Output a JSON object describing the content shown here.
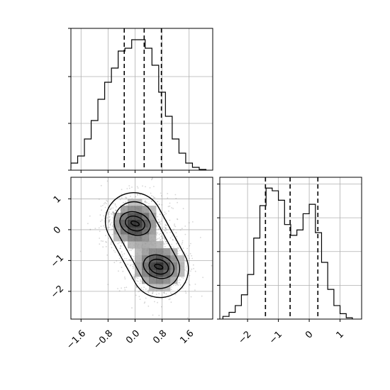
{
  "chart_data": {
    "type": "corner",
    "grid": true,
    "panels": [
      {
        "id": "hist-x",
        "type": "histogram",
        "bins": [
          -2.3,
          -2.1,
          -1.9,
          -1.7,
          -1.5,
          -1.3,
          -1.1,
          -0.9,
          -0.7,
          -0.5,
          -0.3,
          -0.1,
          0.1,
          0.3,
          0.5,
          0.7,
          0.9,
          1.1,
          1.3,
          1.5,
          1.7,
          1.9,
          2.1
        ],
        "counts": [
          0.005,
          0.02,
          0.05,
          0.1,
          0.22,
          0.35,
          0.5,
          0.62,
          0.72,
          0.84,
          0.86,
          0.92,
          0.92,
          0.86,
          0.74,
          0.55,
          0.38,
          0.22,
          0.12,
          0.05,
          0.02,
          0.005
        ],
        "quantiles": [
          -0.32,
          0.27,
          0.78
        ],
        "xlim": [
          -1.9,
          2.3
        ],
        "ylim": [
          0,
          1.0
        ],
        "xticks": [
          -1.6,
          -0.8,
          0.0,
          0.8,
          1.6
        ],
        "yticks": [
          0.0,
          0.33,
          0.66,
          1.0
        ]
      },
      {
        "id": "scatter-xy",
        "type": "density-contour",
        "xlim": [
          -1.9,
          2.3
        ],
        "ylim": [
          -2.9,
          1.7
        ],
        "xticks": [
          -1.6,
          -0.8,
          0.0,
          0.8,
          1.6
        ],
        "xticklabels": [
          "−1.6",
          "−0.8",
          "0.0",
          "0.8",
          "1.6"
        ],
        "yticks": [
          1,
          0,
          -1,
          -2
        ],
        "yticklabels": [
          "1",
          "0",
          "−1",
          "−2"
        ],
        "modes": [
          {
            "x": 0.0,
            "y": 0.2
          },
          {
            "x": 0.7,
            "y": -1.2
          }
        ]
      },
      {
        "id": "hist-y",
        "type": "histogram",
        "bins": [
          -2.8,
          -2.6,
          -2.4,
          -2.2,
          -2.0,
          -1.8,
          -1.6,
          -1.4,
          -1.2,
          -1.0,
          -0.8,
          -0.6,
          -0.4,
          -0.2,
          0.0,
          0.2,
          0.4,
          0.6,
          0.8,
          1.0,
          1.2,
          1.4
        ],
        "counts": [
          0.02,
          0.05,
          0.1,
          0.18,
          0.33,
          0.6,
          0.84,
          0.97,
          0.95,
          0.88,
          0.7,
          0.62,
          0.66,
          0.78,
          0.85,
          0.64,
          0.42,
          0.22,
          0.1,
          0.04,
          0.01
        ],
        "quantiles": [
          -1.42,
          -0.62,
          0.28
        ],
        "xlim": [
          -2.9,
          1.7
        ],
        "ylim": [
          0,
          1.05
        ],
        "xticks": [
          -2,
          -1,
          0,
          1
        ],
        "xticklabels": [
          "−2",
          "−1",
          "0",
          "1"
        ],
        "yticks": [
          0.0,
          0.25,
          0.5,
          0.75,
          1.0
        ]
      }
    ]
  }
}
